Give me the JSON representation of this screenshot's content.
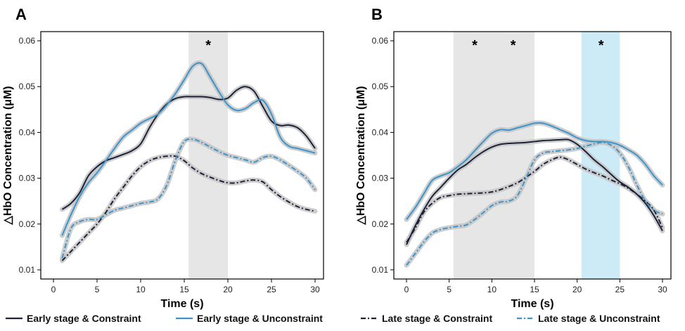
{
  "chart_data": [
    {
      "panel": "A",
      "type": "line",
      "xlabel": "Time (s)",
      "ylabel": "△HbO Concentration (μM)",
      "xlim": [
        0,
        30
      ],
      "ylim": [
        0.008,
        0.062
      ],
      "xticks": [
        0,
        5,
        10,
        15,
        20,
        25,
        30
      ],
      "yticks": [
        0.01,
        0.02,
        0.03,
        0.04,
        0.05,
        0.06
      ],
      "grid": false,
      "highlights": [
        {
          "from": 15.5,
          "to": 20,
          "color": "#e6e6e6",
          "label": "*"
        }
      ],
      "x": [
        1,
        2,
        3,
        4,
        5,
        6,
        7,
        8,
        9,
        10,
        11,
        12,
        13,
        14,
        15,
        16,
        17,
        18,
        19,
        20,
        21,
        22,
        23,
        24,
        25,
        26,
        27,
        28,
        29,
        30
      ],
      "series": [
        {
          "name": "Early stage & Constraint",
          "style": "solid",
          "color": "#1c2238",
          "values": [
            0.0232,
            0.0245,
            0.0268,
            0.0305,
            0.0325,
            0.0338,
            0.0345,
            0.0352,
            0.036,
            0.0375,
            0.041,
            0.044,
            0.0462,
            0.0474,
            0.0478,
            0.0478,
            0.0478,
            0.0476,
            0.0472,
            0.0475,
            0.0492,
            0.05,
            0.049,
            0.0457,
            0.0425,
            0.0415,
            0.0416,
            0.041,
            0.0392,
            0.0365
          ]
        },
        {
          "name": "Early stage & Unconstraint",
          "style": "solid",
          "color": "#3b95cc",
          "values": [
            0.0175,
            0.022,
            0.026,
            0.029,
            0.0312,
            0.0338,
            0.0365,
            0.039,
            0.0405,
            0.042,
            0.043,
            0.044,
            0.046,
            0.0485,
            0.0515,
            0.0545,
            0.055,
            0.052,
            0.0488,
            0.046,
            0.0448,
            0.0452,
            0.0465,
            0.047,
            0.044,
            0.039,
            0.037,
            0.0365,
            0.036,
            0.0355
          ]
        },
        {
          "name": "Late stage & Constraint",
          "style": "dashdot",
          "color": "#1c2238",
          "values": [
            0.012,
            0.014,
            0.016,
            0.018,
            0.02,
            0.0225,
            0.0255,
            0.028,
            0.0305,
            0.0325,
            0.0338,
            0.0345,
            0.0348,
            0.0348,
            0.0338,
            0.0322,
            0.031,
            0.0302,
            0.0295,
            0.029,
            0.029,
            0.0294,
            0.0296,
            0.0292,
            0.0275,
            0.026,
            0.0248,
            0.0238,
            0.0232,
            0.0228
          ]
        },
        {
          "name": "Late stage & Unconstraint",
          "style": "dashdot",
          "color": "#3b95cc",
          "values": [
            0.0125,
            0.019,
            0.0205,
            0.021,
            0.021,
            0.022,
            0.023,
            0.0235,
            0.024,
            0.0245,
            0.0248,
            0.0255,
            0.0285,
            0.034,
            0.038,
            0.0385,
            0.0378,
            0.0368,
            0.0358,
            0.035,
            0.0345,
            0.034,
            0.0335,
            0.0345,
            0.0348,
            0.034,
            0.0328,
            0.0315,
            0.03,
            0.0275
          ]
        }
      ]
    },
    {
      "panel": "B",
      "type": "line",
      "xlabel": "Time (s)",
      "ylabel": "△HbO Concentration (μM)",
      "xlim": [
        0,
        30
      ],
      "ylim": [
        0.008,
        0.062
      ],
      "xticks": [
        0,
        5,
        10,
        15,
        20,
        25,
        30
      ],
      "yticks": [
        0.01,
        0.02,
        0.03,
        0.04,
        0.05,
        0.06
      ],
      "grid": false,
      "highlights": [
        {
          "from": 5.5,
          "to": 15,
          "color": "#e6e6e6",
          "stars": [
            8,
            12.5
          ]
        },
        {
          "from": 20.5,
          "to": 25,
          "color": "#cdeaf7",
          "stars": [
            22.8
          ]
        }
      ],
      "x": [
        0,
        1,
        2,
        3,
        4,
        5,
        6,
        7,
        8,
        9,
        10,
        11,
        12,
        13,
        14,
        15,
        16,
        17,
        18,
        19,
        20,
        21,
        22,
        23,
        24,
        25,
        26,
        27,
        28,
        29,
        30
      ],
      "series": [
        {
          "name": "Early stage & Constraint",
          "style": "solid",
          "color": "#1c2238",
          "values": [
            0.0155,
            0.0195,
            0.023,
            0.026,
            0.028,
            0.03,
            0.0318,
            0.033,
            0.0345,
            0.0358,
            0.0368,
            0.0374,
            0.0376,
            0.0377,
            0.0378,
            0.038,
            0.0382,
            0.0383,
            0.0384,
            0.0384,
            0.0374,
            0.0358,
            0.034,
            0.0325,
            0.0308,
            0.0292,
            0.028,
            0.0265,
            0.0245,
            0.0218,
            0.0185
          ]
        },
        {
          "name": "Early stage & Unconstraint",
          "style": "solid",
          "color": "#3b95cc",
          "values": [
            0.021,
            0.0235,
            0.0265,
            0.0295,
            0.0305,
            0.0312,
            0.0325,
            0.034,
            0.036,
            0.038,
            0.0398,
            0.0406,
            0.0405,
            0.041,
            0.0415,
            0.042,
            0.042,
            0.0414,
            0.0406,
            0.0398,
            0.0388,
            0.0382,
            0.038,
            0.038,
            0.0378,
            0.0372,
            0.0362,
            0.035,
            0.033,
            0.0305,
            0.0285
          ]
        },
        {
          "name": "Late stage & Constraint",
          "style": "dashdot",
          "color": "#1c2238",
          "values": [
            0.016,
            0.019,
            0.0225,
            0.0245,
            0.0258,
            0.0262,
            0.0265,
            0.0266,
            0.0267,
            0.0268,
            0.027,
            0.0275,
            0.0282,
            0.029,
            0.0302,
            0.0315,
            0.033,
            0.034,
            0.0346,
            0.034,
            0.033,
            0.032,
            0.0312,
            0.0305,
            0.0296,
            0.0288,
            0.0278,
            0.0265,
            0.025,
            0.023,
            0.0192
          ]
        },
        {
          "name": "Late stage & Unconstraint",
          "style": "dashdot",
          "color": "#3b95cc",
          "values": [
            0.011,
            0.0135,
            0.016,
            0.018,
            0.0188,
            0.0192,
            0.0195,
            0.0198,
            0.021,
            0.0225,
            0.024,
            0.0248,
            0.025,
            0.0262,
            0.03,
            0.034,
            0.0355,
            0.0358,
            0.036,
            0.0362,
            0.0365,
            0.037,
            0.0375,
            0.0378,
            0.0372,
            0.0355,
            0.0325,
            0.0285,
            0.025,
            0.023,
            0.0222
          ]
        }
      ]
    }
  ],
  "legend": {
    "placement": "bottom",
    "entries": [
      {
        "label": "Early stage & Constraint",
        "style": "solid",
        "color": "#1c2238"
      },
      {
        "label": "Early stage & Unconstraint",
        "style": "solid",
        "color": "#3b95cc"
      },
      {
        "label": "Late stage & Constraint",
        "style": "dashdot",
        "color": "#1c2238"
      },
      {
        "label": "Late stage & Unconstraint",
        "style": "dashdot",
        "color": "#3b95cc"
      }
    ]
  }
}
